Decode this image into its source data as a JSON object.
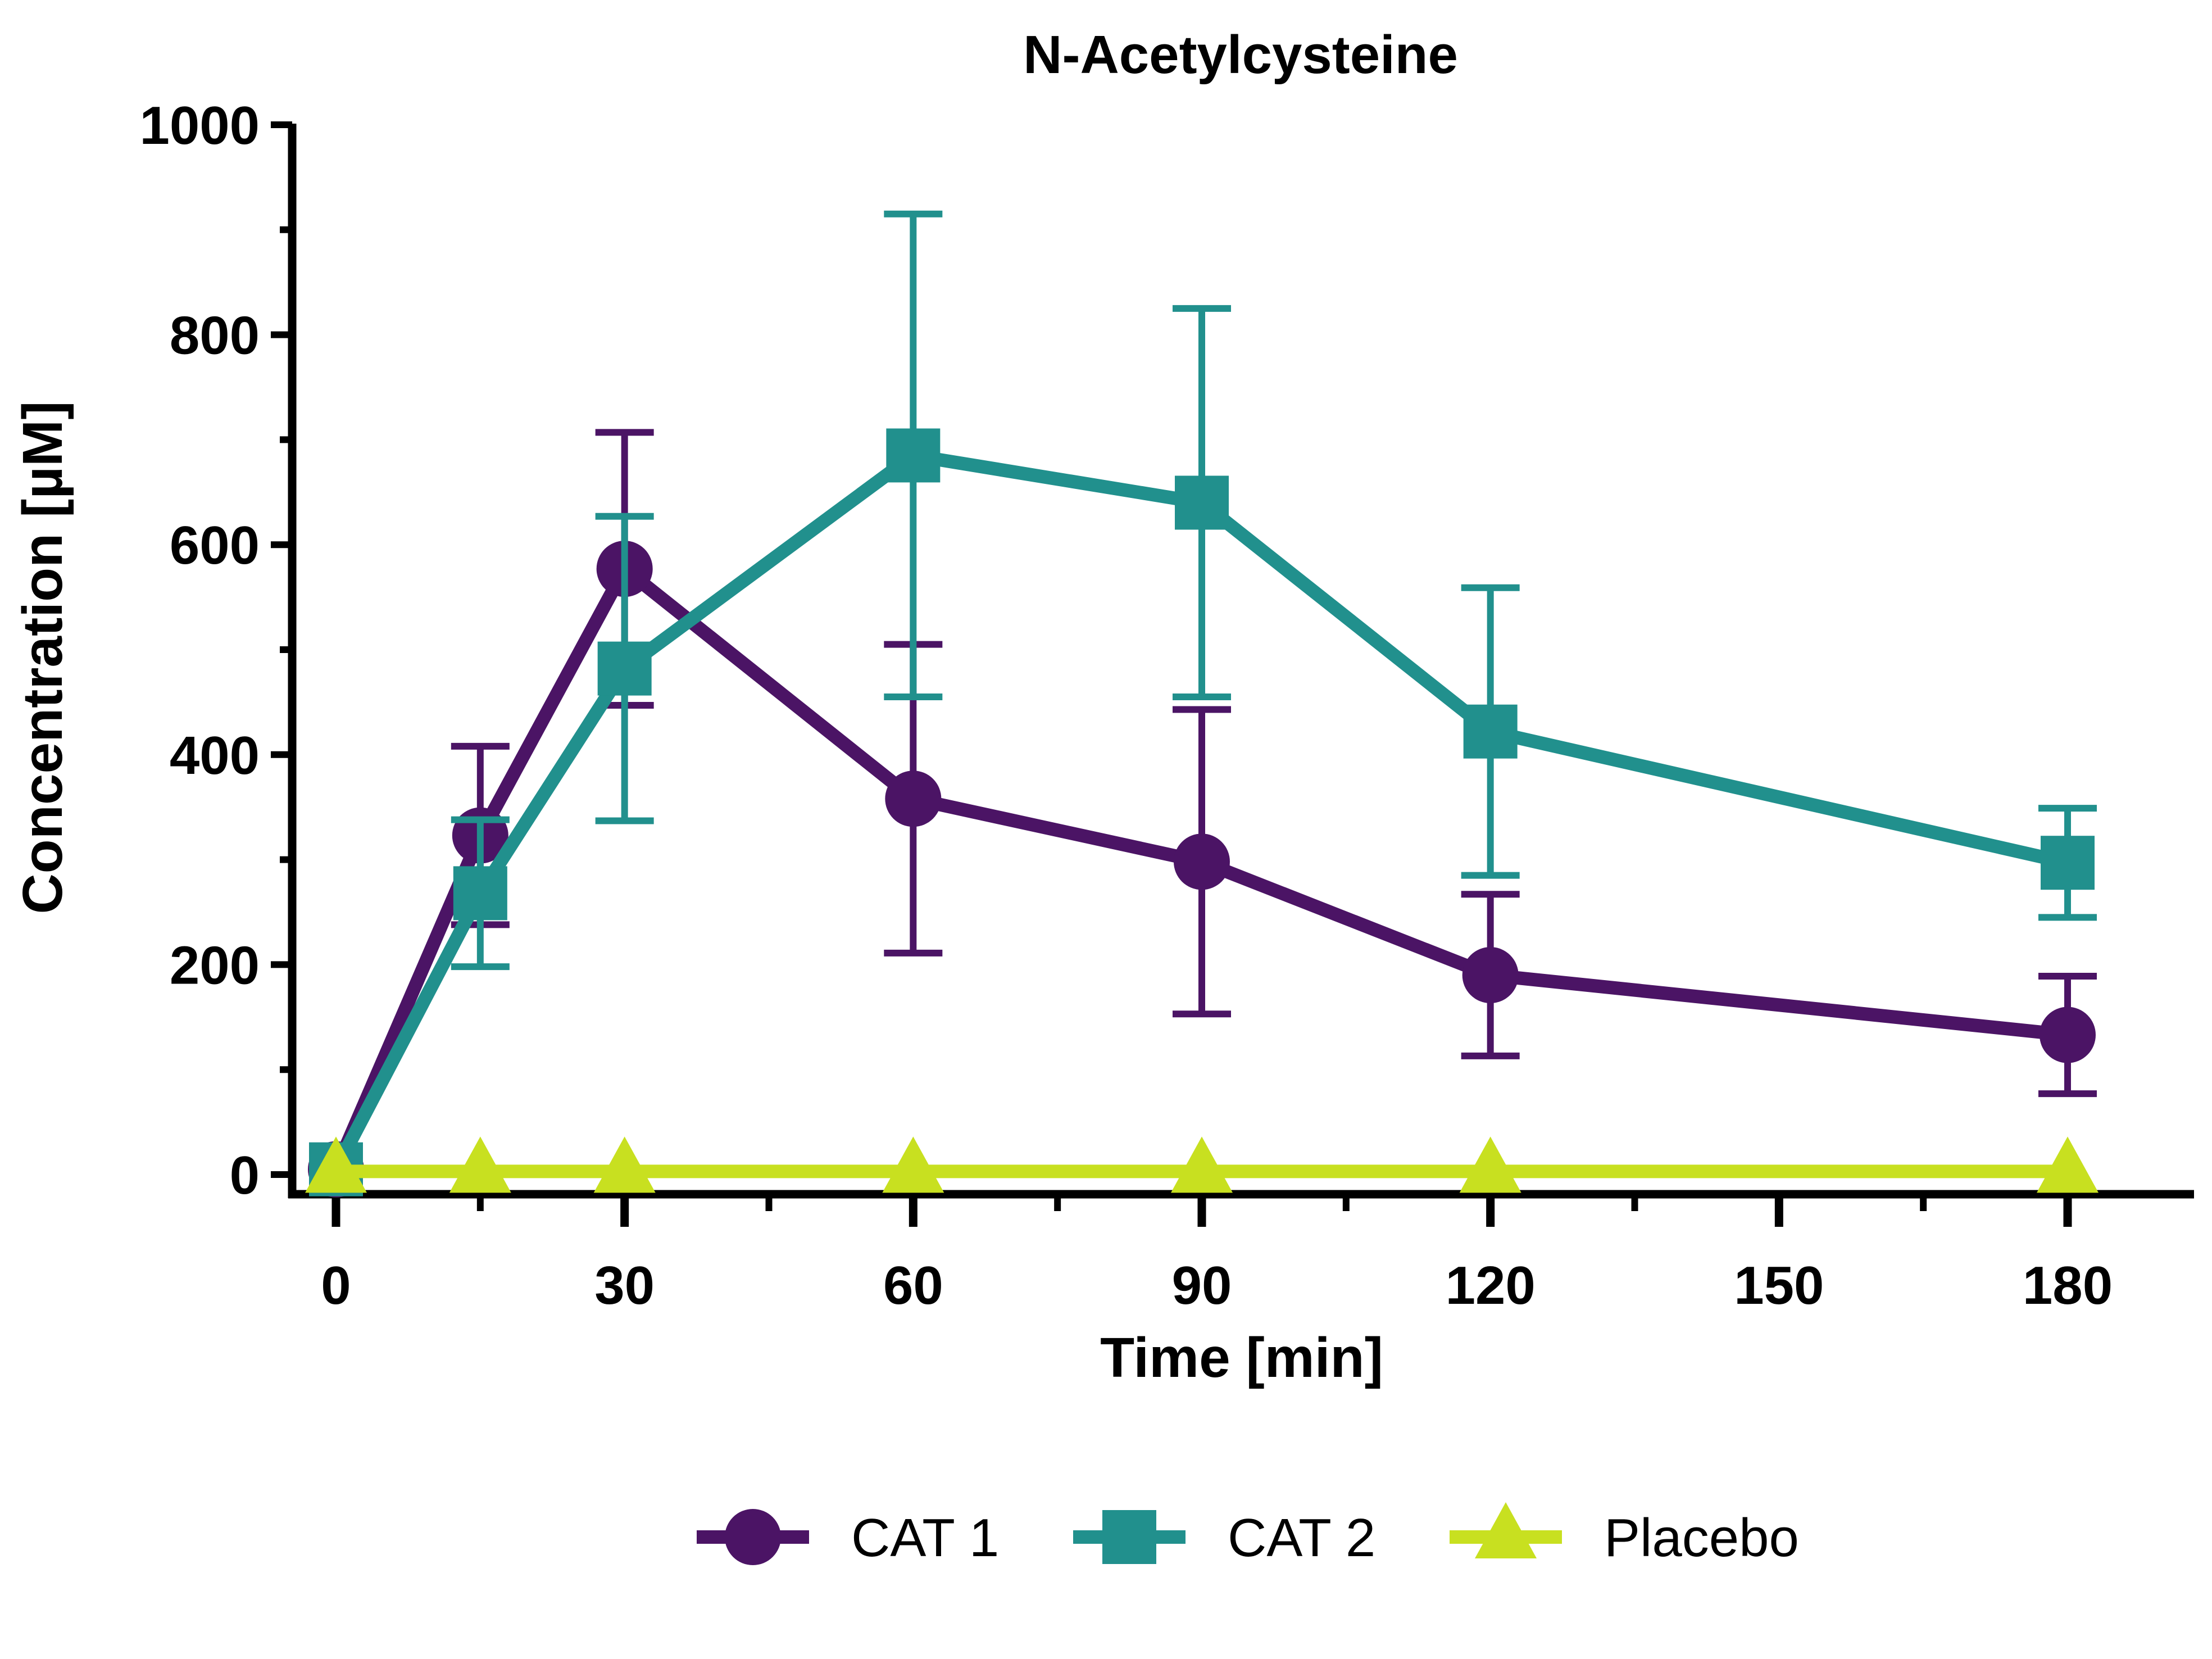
{
  "chart_data": {
    "type": "line",
    "title": "N-Acetylcysteine",
    "xlabel": "Time [min]",
    "ylabel": "Concentration [µM]",
    "xlim": [
      -5,
      190
    ],
    "ylim": [
      -13,
      1000
    ],
    "x_ticks": [
      0,
      30,
      60,
      90,
      120,
      150,
      180
    ],
    "y_ticks": [
      0,
      200,
      400,
      600,
      800,
      1000
    ],
    "x_minor_ticks": [
      15,
      45,
      75,
      105,
      135,
      165
    ],
    "y_minor_ticks": [
      100,
      300,
      500,
      700,
      900
    ],
    "grid": false,
    "legend_position": "bottom-center",
    "x": [
      0,
      15,
      30,
      60,
      90,
      120,
      180
    ],
    "series": [
      {
        "name": "CAT 1",
        "marker": "circle",
        "color": "#4b1465",
        "values": [
          5,
          323,
          577,
          358,
          298,
          190,
          133
        ],
        "error": [
          0,
          85,
          130,
          147,
          145,
          77,
          56
        ]
      },
      {
        "name": "CAT 2",
        "marker": "square",
        "color": "#21908d",
        "values": [
          5,
          268,
          482,
          685,
          640,
          422,
          297
        ],
        "error": [
          0,
          70,
          145,
          230,
          185,
          137,
          52
        ]
      },
      {
        "name": "Placebo",
        "marker": "triangle",
        "color": "#c8e020",
        "values": [
          3,
          3,
          3,
          3,
          3,
          3,
          3
        ],
        "error": [
          0,
          0,
          0,
          0,
          0,
          0,
          0
        ]
      }
    ]
  }
}
